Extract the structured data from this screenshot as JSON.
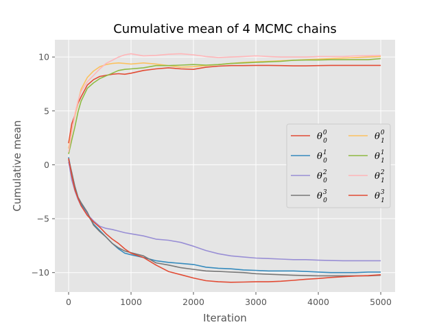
{
  "chart_data": {
    "type": "line",
    "title": "Cumulative mean of 4 MCMC chains",
    "xlabel": "Iteration",
    "ylabel": "Cumulative mean",
    "xlim": [
      -220,
      5230
    ],
    "ylim": [
      -11.8,
      11.6
    ],
    "xticks": [
      0,
      1000,
      2000,
      3000,
      4000,
      5000
    ],
    "yticks": [
      -10,
      -5,
      0,
      5,
      10
    ],
    "grid": true,
    "legend_position": "center-right",
    "legend_columns": 2,
    "x": [
      0,
      50,
      100,
      150,
      200,
      300,
      400,
      500,
      600,
      700,
      800,
      900,
      1000,
      1200,
      1400,
      1600,
      1800,
      2000,
      2200,
      2400,
      2600,
      2800,
      3000,
      3200,
      3400,
      3600,
      3800,
      4000,
      4200,
      4400,
      4600,
      4800,
      5000
    ],
    "series": [
      {
        "label_sym": "θ",
        "label_sub": "0",
        "label_sup": "0",
        "color": "#E24A33",
        "values": [
          2.0,
          3.8,
          4.6,
          5.7,
          6.3,
          7.4,
          7.9,
          8.2,
          8.3,
          8.4,
          8.45,
          8.4,
          8.5,
          8.75,
          8.9,
          9.0,
          8.9,
          8.85,
          9.05,
          9.15,
          9.2,
          9.2,
          9.22,
          9.22,
          9.2,
          9.18,
          9.18,
          9.2,
          9.22,
          9.22,
          9.22,
          9.22,
          9.22
        ]
      },
      {
        "label_sym": "θ",
        "label_sub": "0",
        "label_sup": "1",
        "color": "#348ABD",
        "values": [
          0.7,
          -0.8,
          -2.0,
          -3.0,
          -3.6,
          -4.6,
          -5.5,
          -6.1,
          -6.7,
          -7.3,
          -7.8,
          -8.2,
          -8.35,
          -8.6,
          -8.9,
          -9.05,
          -9.15,
          -9.25,
          -9.5,
          -9.6,
          -9.65,
          -9.75,
          -9.8,
          -9.85,
          -9.85,
          -9.85,
          -9.9,
          -9.95,
          -10.0,
          -10.0,
          -10.0,
          -9.95,
          -9.95
        ]
      },
      {
        "label_sym": "θ",
        "label_sub": "0",
        "label_sup": "2",
        "color": "#988ED5",
        "values": [
          0.3,
          -1.4,
          -2.4,
          -3.2,
          -3.8,
          -4.6,
          -5.2,
          -5.7,
          -5.9,
          -6.0,
          -6.15,
          -6.3,
          -6.4,
          -6.6,
          -6.9,
          -7.0,
          -7.2,
          -7.55,
          -7.95,
          -8.25,
          -8.45,
          -8.55,
          -8.65,
          -8.7,
          -8.75,
          -8.8,
          -8.8,
          -8.85,
          -8.88,
          -8.9,
          -8.9,
          -8.9,
          -8.9
        ]
      },
      {
        "label_sym": "θ",
        "label_sub": "0",
        "label_sup": "3",
        "color": "#777777",
        "values": [
          0.5,
          -0.7,
          -2.0,
          -3.0,
          -3.5,
          -4.4,
          -5.6,
          -6.2,
          -6.7,
          -7.3,
          -7.7,
          -8.0,
          -8.15,
          -8.45,
          -9.1,
          -9.3,
          -9.55,
          -9.7,
          -9.85,
          -9.9,
          -9.95,
          -10.0,
          -10.1,
          -10.15,
          -10.2,
          -10.25,
          -10.28,
          -10.3,
          -10.3,
          -10.3,
          -10.3,
          -10.3,
          -10.25
        ]
      },
      {
        "label_sym": "θ",
        "label_sub": "1",
        "label_sup": "0",
        "color": "#FBC15E",
        "values": [
          1.5,
          3.2,
          4.5,
          5.8,
          7.0,
          8.1,
          8.7,
          9.1,
          9.3,
          9.4,
          9.45,
          9.4,
          9.35,
          9.45,
          9.35,
          9.2,
          9.05,
          9.1,
          9.2,
          9.3,
          9.4,
          9.5,
          9.55,
          9.6,
          9.65,
          9.7,
          9.75,
          9.8,
          9.85,
          9.9,
          9.95,
          10.0,
          10.05
        ]
      },
      {
        "label_sym": "θ",
        "label_sub": "1",
        "label_sup": "1",
        "color": "#8EBA42",
        "values": [
          1.0,
          2.3,
          3.5,
          4.9,
          5.9,
          7.1,
          7.6,
          8.0,
          8.25,
          8.5,
          8.75,
          8.85,
          8.9,
          9.0,
          9.2,
          9.2,
          9.25,
          9.3,
          9.25,
          9.3,
          9.4,
          9.45,
          9.5,
          9.55,
          9.6,
          9.7,
          9.72,
          9.72,
          9.75,
          9.75,
          9.75,
          9.75,
          9.85
        ]
      },
      {
        "label_sym": "θ",
        "label_sub": "1",
        "label_sup": "2",
        "color": "#FFB5B8",
        "values": [
          1.2,
          3.0,
          4.7,
          5.9,
          6.8,
          7.7,
          8.3,
          8.9,
          9.4,
          9.7,
          10.0,
          10.2,
          10.3,
          10.1,
          10.15,
          10.25,
          10.3,
          10.2,
          10.05,
          9.95,
          10.0,
          10.05,
          10.1,
          10.05,
          10.0,
          10.0,
          10.0,
          10.05,
          10.05,
          10.05,
          10.1,
          10.12,
          10.15
        ]
      },
      {
        "label_sym": "θ",
        "label_sub": "1",
        "label_sup": "3",
        "color": "#E24A33",
        "values": [
          0.6,
          -1.0,
          -2.3,
          -3.1,
          -3.8,
          -4.7,
          -5.3,
          -5.8,
          -6.4,
          -6.9,
          -7.3,
          -7.8,
          -8.2,
          -8.6,
          -9.3,
          -9.9,
          -10.2,
          -10.5,
          -10.75,
          -10.85,
          -10.9,
          -10.88,
          -10.85,
          -10.85,
          -10.8,
          -10.72,
          -10.62,
          -10.55,
          -10.45,
          -10.38,
          -10.32,
          -10.28,
          -10.2
        ]
      }
    ]
  }
}
